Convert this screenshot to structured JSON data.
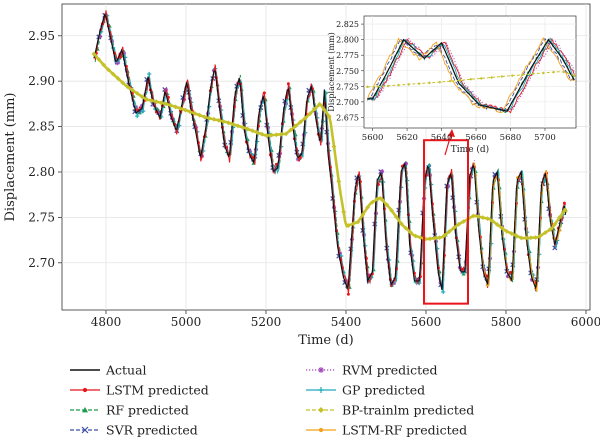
{
  "chart_data": [
    {
      "type": "line",
      "xlabel": "Time (d)",
      "ylabel": "Displacement (mm)",
      "xlim": [
        4690,
        6010
      ],
      "ylim": [
        2.648,
        2.985
      ],
      "xticks": [
        4800,
        5000,
        5200,
        5400,
        5600,
        5800,
        6000
      ],
      "yticks": [
        2.7,
        2.75,
        2.8,
        2.85,
        2.9,
        2.95
      ],
      "xtick_labels": [
        "4800",
        "5000",
        "5200",
        "5400",
        "5600",
        "5800",
        "6000"
      ],
      "ytick_labels": [
        "2.70",
        "2.75",
        "2.80",
        "2.85",
        "2.90",
        "2.95"
      ],
      "grid": true,
      "legend_position": "below",
      "highlight_box": {
        "x": [
          5595,
          5705
        ],
        "y": [
          2.655,
          2.835
        ],
        "color": "#e8151b"
      },
      "actual_anchors": [
        [
          4770,
          2.925
        ],
        [
          4785,
          2.955
        ],
        [
          4798,
          2.975
        ],
        [
          4810,
          2.95
        ],
        [
          4825,
          2.92
        ],
        [
          4840,
          2.935
        ],
        [
          4858,
          2.895
        ],
        [
          4875,
          2.865
        ],
        [
          4890,
          2.87
        ],
        [
          4905,
          2.905
        ],
        [
          4918,
          2.875
        ],
        [
          4935,
          2.86
        ],
        [
          4948,
          2.89
        ],
        [
          4962,
          2.862
        ],
        [
          4976,
          2.845
        ],
        [
          4990,
          2.875
        ],
        [
          5002,
          2.9
        ],
        [
          5012,
          2.87
        ],
        [
          5024,
          2.845
        ],
        [
          5036,
          2.815
        ],
        [
          5050,
          2.85
        ],
        [
          5062,
          2.895
        ],
        [
          5072,
          2.915
        ],
        [
          5084,
          2.87
        ],
        [
          5096,
          2.83
        ],
        [
          5108,
          2.815
        ],
        [
          5122,
          2.885
        ],
        [
          5134,
          2.905
        ],
        [
          5146,
          2.845
        ],
        [
          5158,
          2.82
        ],
        [
          5170,
          2.81
        ],
        [
          5182,
          2.865
        ],
        [
          5194,
          2.885
        ],
        [
          5206,
          2.835
        ],
        [
          5218,
          2.8
        ],
        [
          5230,
          2.805
        ],
        [
          5243,
          2.865
        ],
        [
          5255,
          2.895
        ],
        [
          5267,
          2.85
        ],
        [
          5278,
          2.815
        ],
        [
          5290,
          2.82
        ],
        [
          5302,
          2.88
        ],
        [
          5314,
          2.895
        ],
        [
          5324,
          2.86
        ],
        [
          5336,
          2.83
        ],
        [
          5346,
          2.89
        ],
        [
          5355,
          2.82
        ],
        [
          5363,
          2.79
        ],
        [
          5378,
          2.72
        ],
        [
          5393,
          2.685
        ],
        [
          5405,
          2.67
        ],
        [
          5422,
          2.78
        ],
        [
          5432,
          2.8
        ],
        [
          5443,
          2.73
        ],
        [
          5454,
          2.68
        ],
        [
          5466,
          2.69
        ],
        [
          5477,
          2.79
        ],
        [
          5489,
          2.8
        ],
        [
          5500,
          2.72
        ],
        [
          5512,
          2.675
        ],
        [
          5524,
          2.685
        ],
        [
          5537,
          2.8
        ],
        [
          5548,
          2.81
        ],
        [
          5559,
          2.72
        ],
        [
          5571,
          2.68
        ],
        [
          5584,
          2.68
        ],
        [
          5596,
          2.79
        ],
        [
          5606,
          2.81
        ],
        [
          5616,
          2.755
        ],
        [
          5630,
          2.69
        ],
        [
          5640,
          2.67
        ],
        [
          5652,
          2.785
        ],
        [
          5663,
          2.8
        ],
        [
          5674,
          2.73
        ],
        [
          5686,
          2.69
        ],
        [
          5697,
          2.69
        ],
        [
          5709,
          2.795
        ],
        [
          5720,
          2.81
        ],
        [
          5731,
          2.74
        ],
        [
          5743,
          2.69
        ],
        [
          5755,
          2.675
        ],
        [
          5767,
          2.79
        ],
        [
          5778,
          2.8
        ],
        [
          5790,
          2.73
        ],
        [
          5802,
          2.69
        ],
        [
          5815,
          2.68
        ],
        [
          5827,
          2.79
        ],
        [
          5838,
          2.8
        ],
        [
          5850,
          2.73
        ],
        [
          5863,
          2.685
        ],
        [
          5876,
          2.67
        ],
        [
          5888,
          2.785
        ],
        [
          5899,
          2.8
        ],
        [
          5911,
          2.745
        ],
        [
          5922,
          2.72
        ],
        [
          5933,
          2.74
        ],
        [
          5945,
          2.765
        ],
        [
          5950,
          2.75
        ]
      ],
      "bp_trend_anchors": [
        [
          4770,
          2.93
        ],
        [
          4800,
          2.915
        ],
        [
          4850,
          2.895
        ],
        [
          4900,
          2.88
        ],
        [
          4950,
          2.875
        ],
        [
          5000,
          2.868
        ],
        [
          5050,
          2.86
        ],
        [
          5100,
          2.855
        ],
        [
          5150,
          2.848
        ],
        [
          5200,
          2.84
        ],
        [
          5250,
          2.842
        ],
        [
          5300,
          2.86
        ],
        [
          5335,
          2.875
        ],
        [
          5360,
          2.86
        ],
        [
          5385,
          2.78
        ],
        [
          5400,
          2.74
        ],
        [
          5430,
          2.745
        ],
        [
          5460,
          2.765
        ],
        [
          5485,
          2.772
        ],
        [
          5510,
          2.76
        ],
        [
          5540,
          2.742
        ],
        [
          5570,
          2.73
        ],
        [
          5600,
          2.726
        ],
        [
          5640,
          2.728
        ],
        [
          5680,
          2.742
        ],
        [
          5720,
          2.752
        ],
        [
          5760,
          2.748
        ],
        [
          5800,
          2.735
        ],
        [
          5840,
          2.727
        ],
        [
          5880,
          2.728
        ],
        [
          5915,
          2.738
        ],
        [
          5950,
          2.76
        ]
      ],
      "series": [
        {
          "name": "Actual",
          "color": "#111111",
          "marker": "none",
          "dash": "solid"
        },
        {
          "name": "LSTM predicted",
          "color": "#e8151b",
          "marker": "circle",
          "dash": "solid"
        },
        {
          "name": "RF predicted",
          "color": "#1a9a4b",
          "marker": "triangle",
          "dash": "dashed"
        },
        {
          "name": "SVR predicted",
          "color": "#3d4fa8",
          "marker": "x",
          "dash": "dashed"
        },
        {
          "name": "RVM predicted",
          "color": "#a043b6",
          "marker": "star",
          "dash": "dotted"
        },
        {
          "name": "GP predicted",
          "color": "#1faab8",
          "marker": "plus",
          "dash": "solid"
        },
        {
          "name": "BP-trainlm predicted",
          "color": "#c5c129",
          "marker": "diamond",
          "dash": "dashed"
        },
        {
          "name": "LSTM-RF predicted",
          "color": "#f5a019",
          "marker": "circle",
          "dash": "solid"
        }
      ]
    },
    {
      "type": "line",
      "role": "inset",
      "xlabel": "Time (d)",
      "ylabel": "Displacement (mm)",
      "xlim": [
        5595,
        5718
      ],
      "ylim": [
        2.658,
        2.838
      ],
      "xticks": [
        5600,
        5620,
        5640,
        5660,
        5680,
        5700
      ],
      "yticks": [
        2.675,
        2.7,
        2.725,
        2.75,
        2.775,
        2.8,
        2.825
      ],
      "xtick_labels": [
        "5600",
        "5620",
        "5640",
        "5660",
        "5680",
        "5700"
      ],
      "ytick_labels": [
        "2.675",
        "2.700",
        "2.725",
        "2.750",
        "2.775",
        "2.800",
        "2.825"
      ],
      "grid": true,
      "actual": [
        [
          5600,
          2.705
        ],
        [
          5608,
          2.745
        ],
        [
          5618,
          2.8
        ],
        [
          5630,
          2.77
        ],
        [
          5640,
          2.795
        ],
        [
          5650,
          2.73
        ],
        [
          5662,
          2.695
        ],
        [
          5678,
          2.685
        ],
        [
          5692,
          2.755
        ],
        [
          5702,
          2.8
        ],
        [
          5710,
          2.77
        ],
        [
          5717,
          2.735
        ]
      ],
      "bp_trend": [
        [
          5600,
          2.724
        ],
        [
          5640,
          2.732
        ],
        [
          5680,
          2.742
        ],
        [
          5710,
          2.749
        ],
        [
          5717,
          2.742
        ]
      ]
    }
  ],
  "legend": {
    "items": [
      "Actual",
      "RVM predicted",
      "LSTM predicted",
      "GP predicted",
      "RF predicted",
      "BP-trainlm predicted",
      "SVR predicted",
      "LSTM-RF predicted"
    ]
  }
}
